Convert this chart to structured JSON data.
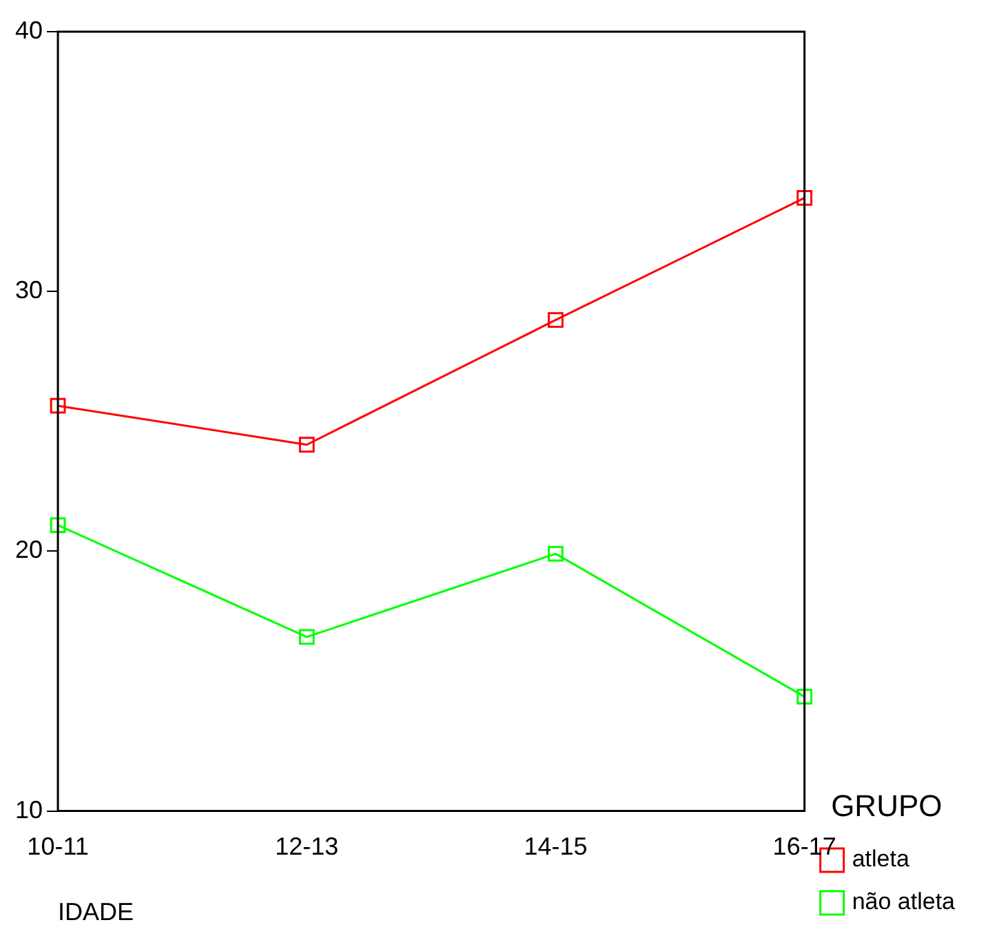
{
  "chart_data": {
    "type": "line",
    "xlabel": "IDADE",
    "legend_title": "GRUPO",
    "categories": [
      "10-11",
      "12-13",
      "14-15",
      "16-17"
    ],
    "series": [
      {
        "name": "atleta",
        "color": "#ff0000",
        "values": [
          25.6,
          24.1,
          28.9,
          33.6
        ]
      },
      {
        "name": "não atleta",
        "color": "#00ff00",
        "values": [
          21.0,
          16.7,
          19.9,
          14.4
        ]
      }
    ],
    "ylim": [
      10,
      40
    ],
    "yticks": [
      10,
      20,
      30,
      40
    ],
    "grid": false,
    "legend": "right",
    "marker": "square",
    "line_style": "solid"
  }
}
